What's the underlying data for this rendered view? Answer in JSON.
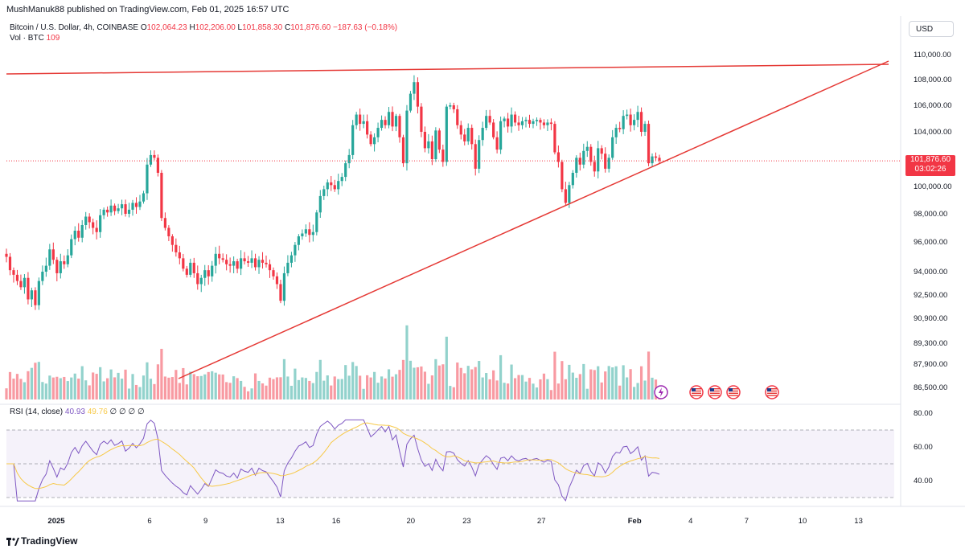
{
  "header": {
    "published": "MushManuk88 published on TradingView.com, Feb 01, 2025 16:57 UTC"
  },
  "legend": {
    "symbol": "Bitcoin / U.S. Dollar, 4h, COINBASE",
    "open_label": "O",
    "open": "102,064.23",
    "high_label": "H",
    "high": "102,206.00",
    "low_label": "L",
    "low": "101,858.30",
    "close_label": "C",
    "close": "101,876.60",
    "change": "−187.63 (−0.18%)",
    "vol_label": "Vol · BTC",
    "vol_value": "109",
    "rsi_label": "RSI (14, close)",
    "rsi_value": "40.93",
    "rsi_ma": "49.76",
    "rsi_extra": "∅ ∅ ∅ ∅"
  },
  "currency_button": "USD",
  "price_tag": {
    "price": "101,876.60",
    "countdown": "03:02:26"
  },
  "footer": {
    "brand": "TradingView"
  },
  "colors": {
    "up": "#26a69a",
    "down": "#f23645",
    "trendline": "#e53935",
    "rsi": "#7e57c2",
    "rsi_ma": "#f7c948"
  },
  "chart_data": {
    "type": "candlestick",
    "timeframe": "4h",
    "price_axis_ticks": [
      "110,000.00",
      "108,000.00",
      "106,000.00",
      "104,000.00",
      "100,000.00",
      "98,000.00",
      "96,000.00",
      "94,000.00",
      "92,500.00",
      "90,900.00",
      "89,300.00",
      "87,900.00",
      "86,500.00"
    ],
    "rsi_axis_ticks": [
      "80.00",
      "60.00",
      "40.00"
    ],
    "rsi_bands": [
      70,
      50,
      30
    ],
    "x_tick_labels": [
      "2025",
      "6",
      "9",
      "13",
      "16",
      "20",
      "23",
      "27",
      "Feb",
      "4",
      "7",
      "10",
      "13"
    ],
    "last_price": 101876.6,
    "trendlines": [
      {
        "name": "resistance",
        "from": [
          "Dec 31",
          108600
        ],
        "to": [
          "Feb 13",
          109100
        ]
      },
      {
        "name": "support",
        "from": [
          "Jan 7",
          87200
        ],
        "to": [
          "Feb 13",
          109300
        ]
      }
    ],
    "candles_close": [
      95000,
      94100,
      93800,
      93400,
      93000,
      93600,
      92200,
      92800,
      91800,
      93400,
      94000,
      94400,
      95500,
      94800,
      93900,
      94700,
      94500,
      95100,
      96200,
      96800,
      96300,
      97200,
      97800,
      97400,
      97000,
      96700,
      97900,
      98300,
      98100,
      98600,
      98200,
      98400,
      98700,
      98000,
      98300,
      98800,
      98500,
      98900,
      99500,
      101600,
      102300,
      102100,
      101000,
      97700,
      97000,
      96400,
      95800,
      95300,
      94900,
      94200,
      93800,
      94600,
      93900,
      93200,
      93600,
      94100,
      93700,
      94400,
      95200,
      94900,
      94800,
      94500,
      94400,
      94700,
      94200,
      94900,
      94700,
      94600,
      94900,
      94300,
      94800,
      94600,
      94500,
      94100,
      93700,
      93200,
      92100,
      93900,
      94600,
      95100,
      95800,
      96400,
      96600,
      96900,
      96500,
      96700,
      98100,
      99300,
      99800,
      100300,
      100100,
      99800,
      100400,
      100700,
      101700,
      102300,
      104500,
      105300,
      104600,
      104800,
      103800,
      103100,
      103600,
      104300,
      104900,
      104500,
      105500,
      104400,
      105200,
      103600,
      101700,
      105600,
      106900,
      107800,
      105900,
      104000,
      102800,
      103300,
      102000,
      104100,
      102700,
      101800,
      105900,
      106000,
      105700,
      104500,
      103800,
      103300,
      104300,
      103100,
      101300,
      103400,
      104300,
      105200,
      104700,
      103600,
      102700,
      104800,
      105000,
      104400,
      105300,
      104700,
      104500,
      104800,
      104900,
      104600,
      104800,
      104900,
      104700,
      104500,
      104700,
      104600,
      102500,
      101800,
      99800,
      98800,
      100100,
      101000,
      102100,
      101600,
      102600,
      102900,
      101800,
      101100,
      102800,
      102400,
      101300,
      102100,
      103600,
      104300,
      104200,
      105200,
      105300,
      104500,
      104900,
      105500,
      104000,
      104600,
      101700,
      102200,
      102100,
      101900
    ]
  }
}
